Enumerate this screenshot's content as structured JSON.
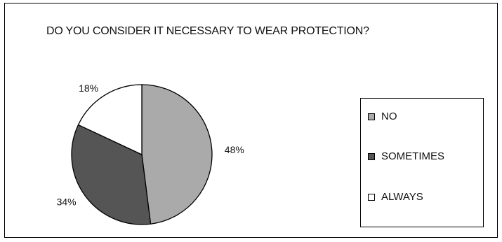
{
  "chart_data": {
    "type": "pie",
    "title": "DO YOU CONSIDER IT NECESSARY TO WEAR PROTECTION?",
    "categories": [
      "NO",
      "SOMETIMES",
      "ALWAYS"
    ],
    "values": [
      48,
      34,
      18
    ],
    "labels": [
      "48%",
      "34%",
      "18%"
    ],
    "colors": [
      "#aaaaaa",
      "#555555",
      "#ffffff"
    ],
    "legend_position": "right"
  }
}
